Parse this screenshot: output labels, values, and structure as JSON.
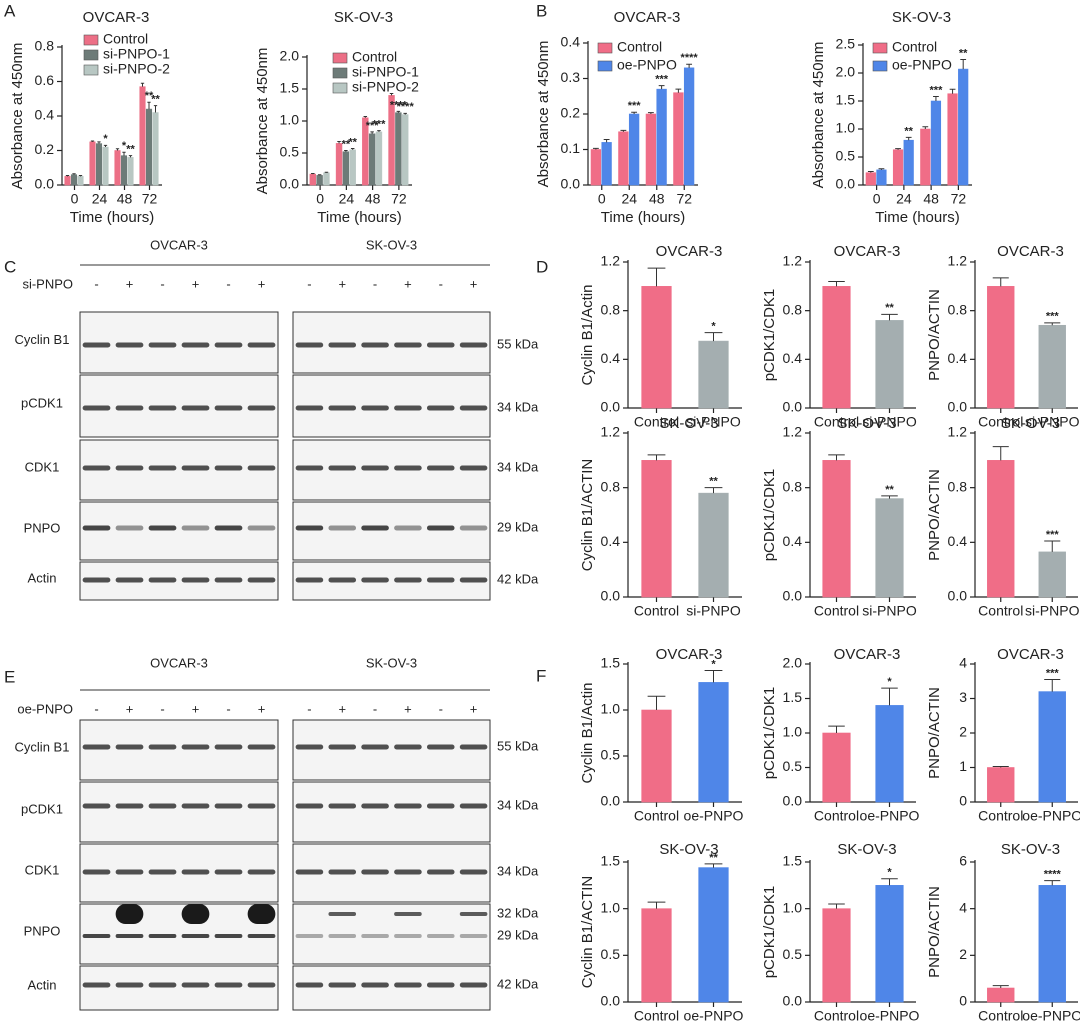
{
  "panel_labels": [
    "A",
    "B",
    "C",
    "D",
    "E",
    "F"
  ],
  "chart_data": [
    {
      "type": "grouped-bar",
      "title": "OVCAR-3",
      "xlabel": "Time (hours)",
      "ylabel": "Absorbance at 450nm",
      "categories": [
        "0",
        "24",
        "48",
        "72"
      ],
      "ylim": [
        0,
        0.8
      ],
      "yticks": [
        {
          "value": 0,
          "label": "0.0"
        },
        0.2,
        0.4,
        0.6,
        0.8
      ],
      "series": [
        {
          "name": "Control",
          "color": "#ec6f86",
          "values": [
            0.05,
            0.25,
            0.2,
            0.57
          ],
          "errors": [
            0.005,
            0.005,
            0.01,
            0.02
          ],
          "significance": [
            null,
            null,
            null,
            null
          ]
        },
        {
          "name": "si-PNPO-1",
          "color": "#6d7b78",
          "values": [
            0.06,
            0.24,
            0.17,
            0.44
          ],
          "errors": [
            0.005,
            0.01,
            0.02,
            0.04
          ],
          "significance": [
            null,
            null,
            "*",
            "**"
          ]
        },
        {
          "name": "si-PNPO-2",
          "color": "#b8c7c3",
          "values": [
            0.05,
            0.22,
            0.16,
            0.42
          ],
          "errors": [
            0.005,
            0.01,
            0.01,
            0.04
          ],
          "significance": [
            null,
            "*",
            "**",
            "**"
          ]
        }
      ]
    },
    {
      "type": "grouped-bar",
      "title": "SK-OV-3",
      "xlabel": "Time (hours)",
      "ylabel": "Absorbance at 450nm",
      "categories": [
        "0",
        "24",
        "48",
        "72"
      ],
      "ylim": [
        0,
        2.0
      ],
      "yticks": [
        {
          "value": 0,
          "label": "0.0"
        },
        0.5,
        {
          "value": 1,
          "label": "1.0"
        },
        1.5,
        {
          "value": 2,
          "label": "2.0"
        }
      ],
      "series": [
        {
          "name": "Control",
          "color": "#ec6f86",
          "values": [
            0.17,
            0.65,
            1.05,
            1.4
          ],
          "errors": [
            0.01,
            0.03,
            0.02,
            0.03
          ],
          "significance": [
            null,
            null,
            null,
            null
          ]
        },
        {
          "name": "si-PNPO-1",
          "color": "#6d7b78",
          "values": [
            0.15,
            0.52,
            0.8,
            1.13
          ],
          "errors": [
            0.01,
            0.02,
            0.03,
            0.02
          ],
          "significance": [
            null,
            "**",
            "***",
            "****"
          ]
        },
        {
          "name": "si-PNPO-2",
          "color": "#b8c7c3",
          "values": [
            0.19,
            0.55,
            0.83,
            1.1
          ],
          "errors": [
            0.01,
            0.02,
            0.02,
            0.02
          ],
          "significance": [
            null,
            "**",
            "***",
            "****"
          ]
        }
      ]
    },
    {
      "type": "grouped-bar",
      "title": "OVCAR-3",
      "xlabel": "Time (hours)",
      "ylabel": "Absorbance at 450nm",
      "categories": [
        "0",
        "24",
        "48",
        "72"
      ],
      "ylim": [
        0,
        0.4
      ],
      "yticks": [
        {
          "value": 0,
          "label": "0.0"
        },
        0.1,
        0.2,
        0.3,
        0.4
      ],
      "series": [
        {
          "name": "Control",
          "color": "#f06d87",
          "values": [
            0.1,
            0.15,
            0.2,
            0.26
          ],
          "errors": [
            0.003,
            0.004,
            0.004,
            0.01
          ],
          "significance": [
            null,
            null,
            null,
            null
          ]
        },
        {
          "name": "oe-PNPO",
          "color": "#4f86e8",
          "values": [
            0.12,
            0.2,
            0.27,
            0.33
          ],
          "errors": [
            0.008,
            0.005,
            0.01,
            0.01
          ],
          "significance": [
            null,
            "***",
            "***",
            "****"
          ]
        }
      ]
    },
    {
      "type": "grouped-bar",
      "title": "SK-OV-3",
      "xlabel": "Time (hours)",
      "ylabel": "Absorbance at 450nm",
      "categories": [
        "0",
        "24",
        "48",
        "72"
      ],
      "ylim": [
        0,
        2.5
      ],
      "yticks": [
        {
          "value": 0,
          "label": "0.0"
        },
        0.5,
        {
          "value": 1,
          "label": "1.0"
        },
        1.5,
        {
          "value": 2,
          "label": "2.0"
        },
        2.5
      ],
      "series": [
        {
          "name": "Control",
          "color": "#f06d87",
          "values": [
            0.22,
            0.63,
            1.0,
            1.63
          ],
          "errors": [
            0.02,
            0.02,
            0.04,
            0.08
          ],
          "significance": [
            null,
            null,
            null,
            null
          ]
        },
        {
          "name": "oe-PNPO",
          "color": "#4f86e8",
          "values": [
            0.27,
            0.8,
            1.5,
            2.07
          ],
          "errors": [
            0.02,
            0.05,
            0.08,
            0.17
          ],
          "significance": [
            null,
            "**",
            "***",
            "**"
          ]
        }
      ]
    },
    {
      "type": "bar",
      "title": "OVCAR-3",
      "ylabel": "Cyclin B1/Actin",
      "categories": [
        "Control",
        "si-PNPO"
      ],
      "values": [
        1.0,
        0.55
      ],
      "errors": [
        0.15,
        0.07
      ],
      "significance": [
        null,
        "*"
      ],
      "colors": [
        "#f06d87",
        "#a4aeb0"
      ],
      "ylim": [
        0,
        1.2
      ],
      "yticks": [
        {
          "value": 0,
          "label": "0.0"
        },
        0.4,
        0.8,
        1.2
      ]
    },
    {
      "type": "bar",
      "title": "OVCAR-3",
      "ylabel": "pCDK1/CDK1",
      "categories": [
        "Control",
        "si-PNPO"
      ],
      "values": [
        1.0,
        0.72
      ],
      "errors": [
        0.04,
        0.05
      ],
      "significance": [
        null,
        "**"
      ],
      "colors": [
        "#f06d87",
        "#a4aeb0"
      ],
      "ylim": [
        0,
        1.2
      ],
      "yticks": [
        {
          "value": 0,
          "label": "0.0"
        },
        0.4,
        0.8,
        1.2
      ]
    },
    {
      "type": "bar",
      "title": "OVCAR-3",
      "ylabel": "PNPO/ACTIN",
      "categories": [
        "Control",
        "si-PNPO"
      ],
      "values": [
        1.0,
        0.68
      ],
      "errors": [
        0.07,
        0.02
      ],
      "significance": [
        null,
        "***"
      ],
      "colors": [
        "#f06d87",
        "#a4aeb0"
      ],
      "ylim": [
        0,
        1.2
      ],
      "yticks": [
        {
          "value": 0,
          "label": "0.0"
        },
        0.4,
        0.8,
        1.2
      ]
    },
    {
      "type": "bar",
      "title": "SK-OV-3",
      "ylabel": "Cyclin B1/ACTIN",
      "categories": [
        "Control",
        "si-PNPO"
      ],
      "values": [
        1.0,
        0.76
      ],
      "errors": [
        0.04,
        0.04
      ],
      "significance": [
        null,
        "**"
      ],
      "colors": [
        "#f06d87",
        "#a4aeb0"
      ],
      "ylim": [
        0,
        1.2
      ],
      "yticks": [
        {
          "value": 0,
          "label": "0.0"
        },
        0.4,
        0.8,
        1.2
      ]
    },
    {
      "type": "bar",
      "title": "SK-OV-3",
      "ylabel": "pCDK1/CDK1",
      "categories": [
        "Control",
        "si-PNPO"
      ],
      "values": [
        1.0,
        0.72
      ],
      "errors": [
        0.04,
        0.02
      ],
      "significance": [
        null,
        "**"
      ],
      "colors": [
        "#f06d87",
        "#a4aeb0"
      ],
      "ylim": [
        0,
        1.2
      ],
      "yticks": [
        {
          "value": 0,
          "label": "0.0"
        },
        0.4,
        0.8,
        1.2
      ]
    },
    {
      "type": "bar",
      "title": "SK-OV-3",
      "ylabel": "PNPO/ACTIN",
      "categories": [
        "Control",
        "si-PNPO"
      ],
      "values": [
        1.0,
        0.33
      ],
      "errors": [
        0.1,
        0.08
      ],
      "significance": [
        null,
        "***"
      ],
      "colors": [
        "#f06d87",
        "#a4aeb0"
      ],
      "ylim": [
        0,
        1.2
      ],
      "yticks": [
        {
          "value": 0,
          "label": "0.0"
        },
        0.4,
        0.8,
        1.2
      ]
    },
    {
      "type": "bar",
      "title": "OVCAR-3",
      "ylabel": "Cyclin B1/Actin",
      "categories": [
        "Control",
        "oe-PNPO"
      ],
      "values": [
        1.0,
        1.3
      ],
      "errors": [
        0.15,
        0.13
      ],
      "significance": [
        null,
        "*"
      ],
      "colors": [
        "#f06d87",
        "#4f86e8"
      ],
      "ylim": [
        0,
        1.5
      ],
      "yticks": [
        {
          "value": 0,
          "label": "0.0"
        },
        0.5,
        {
          "value": 1,
          "label": "1.0"
        },
        1.5
      ]
    },
    {
      "type": "bar",
      "title": "OVCAR-3",
      "ylabel": "pCDK1/CDK1",
      "categories": [
        "Control",
        "oe-PNPO"
      ],
      "values": [
        1.0,
        1.4
      ],
      "errors": [
        0.1,
        0.25
      ],
      "significance": [
        null,
        "*"
      ],
      "colors": [
        "#f06d87",
        "#4f86e8"
      ],
      "ylim": [
        0,
        2.0
      ],
      "yticks": [
        {
          "value": 0,
          "label": "0.0"
        },
        0.5,
        {
          "value": 1,
          "label": "1.0"
        },
        1.5,
        {
          "value": 2,
          "label": "2.0"
        }
      ]
    },
    {
      "type": "bar",
      "title": "OVCAR-3",
      "ylabel": "PNPO/ACTIN",
      "categories": [
        "Control",
        "oe-PNPO"
      ],
      "values": [
        1.0,
        3.2
      ],
      "errors": [
        0.03,
        0.35
      ],
      "significance": [
        null,
        "***"
      ],
      "colors": [
        "#f06d87",
        "#4f86e8"
      ],
      "ylim": [
        0,
        4
      ],
      "yticks": [
        0,
        1,
        2,
        3,
        4
      ]
    },
    {
      "type": "bar",
      "title": "SK-OV-3",
      "ylabel": "Cyclin B1/ACTIN",
      "categories": [
        "Control",
        "oe-PNPO"
      ],
      "values": [
        1.0,
        1.44
      ],
      "errors": [
        0.07,
        0.04
      ],
      "significance": [
        null,
        "**"
      ],
      "colors": [
        "#f06d87",
        "#4f86e8"
      ],
      "ylim": [
        0,
        1.5
      ],
      "yticks": [
        {
          "value": 0,
          "label": "0.0"
        },
        0.5,
        {
          "value": 1,
          "label": "1.0"
        },
        1.5
      ]
    },
    {
      "type": "bar",
      "title": "SK-OV-3",
      "ylabel": "pCDK1/CDK1",
      "categories": [
        "Control",
        "oe-PNPO"
      ],
      "values": [
        1.0,
        1.25
      ],
      "errors": [
        0.05,
        0.07
      ],
      "significance": [
        null,
        "*"
      ],
      "colors": [
        "#f06d87",
        "#4f86e8"
      ],
      "ylim": [
        0,
        1.5
      ],
      "yticks": [
        {
          "value": 0,
          "label": "0.0"
        },
        0.5,
        {
          "value": 1,
          "label": "1.0"
        },
        1.5
      ]
    },
    {
      "type": "bar",
      "title": "SK-OV-3",
      "ylabel": "PNPO/ACTIN",
      "categories": [
        "Control",
        "oe-PNPO"
      ],
      "values": [
        0.6,
        5.0
      ],
      "errors": [
        0.1,
        0.2
      ],
      "significance": [
        null,
        "****"
      ],
      "colors": [
        "#f06d87",
        "#4f86e8"
      ],
      "ylim": [
        0,
        6
      ],
      "yticks": [
        0,
        2,
        4,
        6
      ]
    }
  ],
  "blots": [
    {
      "treatment": "si-PNPO",
      "groups": [
        {
          "name": "OVCAR-3",
          "lanes": [
            "-",
            "+",
            "-",
            "+",
            "-",
            "+"
          ]
        },
        {
          "name": "SK-OV-3",
          "lanes": [
            "-",
            "+",
            "-",
            "+",
            "-",
            "+"
          ]
        }
      ],
      "rows": [
        {
          "name": "Cyclin B1",
          "sizes": [
            "55 kDa"
          ]
        },
        {
          "name": "pCDK1",
          "sizes": [
            "34 kDa"
          ]
        },
        {
          "name": "CDK1",
          "sizes": [
            "34 kDa"
          ]
        },
        {
          "name": "PNPO",
          "sizes": [
            "29 kDa"
          ]
        },
        {
          "name": "Actin",
          "sizes": [
            "42 kDa"
          ]
        }
      ]
    },
    {
      "treatment": "oe-PNPO",
      "groups": [
        {
          "name": "OVCAR-3",
          "lanes": [
            "-",
            "+",
            "-",
            "+",
            "-",
            "+"
          ]
        },
        {
          "name": "SK-OV-3",
          "lanes": [
            "-",
            "+",
            "-",
            "+",
            "-",
            "+"
          ]
        }
      ],
      "rows": [
        {
          "name": "Cyclin B1",
          "sizes": [
            "55 kDa"
          ]
        },
        {
          "name": "pCDK1",
          "sizes": [
            "34 kDa"
          ]
        },
        {
          "name": "CDK1",
          "sizes": [
            "34 kDa"
          ]
        },
        {
          "name": "PNPO",
          "sizes": [
            "32 kDa",
            "29 kDa"
          ]
        },
        {
          "name": "Actin",
          "sizes": [
            "42 kDa"
          ]
        }
      ]
    }
  ]
}
